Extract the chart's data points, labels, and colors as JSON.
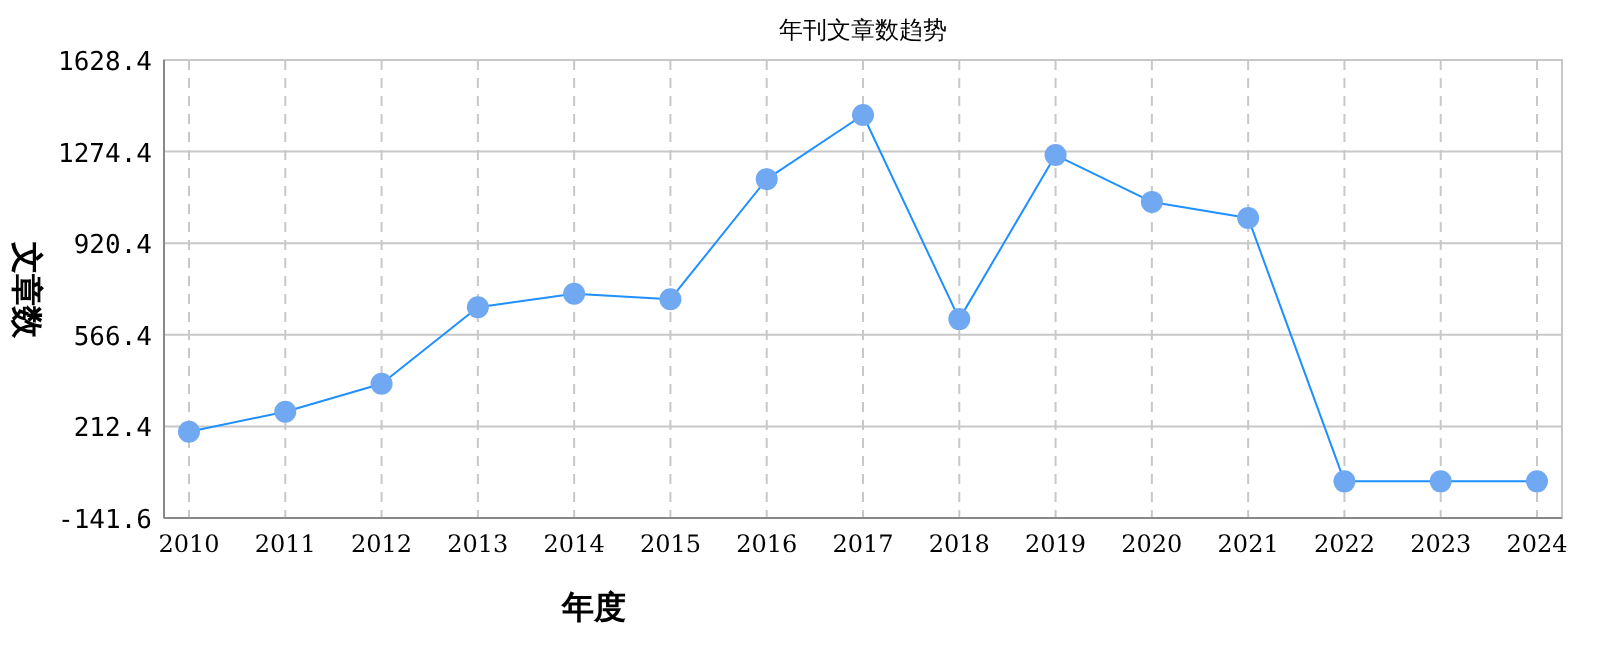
{
  "chart_data": {
    "type": "line",
    "title": "年刊文章数趋势",
    "xlabel": "年度",
    "ylabel": "文章数",
    "categories": [
      "2010",
      "2011",
      "2012",
      "2013",
      "2014",
      "2015",
      "2016",
      "2017",
      "2018",
      "2019",
      "2020",
      "2021",
      "2022",
      "2023",
      "2024"
    ],
    "series": [
      {
        "color": "#1e90ff",
        "values": [
          192,
          269,
          377,
          673,
          725,
          704,
          1168,
          1416,
          627,
          1261,
          1080,
          1018,
          0,
          0,
          0
        ]
      }
    ],
    "ylim": [
      -141.6,
      1628.4
    ],
    "yticks": [
      -141.6,
      212.4,
      566.4,
      920.4,
      1274.4,
      1628.4
    ],
    "grid": true,
    "marker": "circle"
  }
}
